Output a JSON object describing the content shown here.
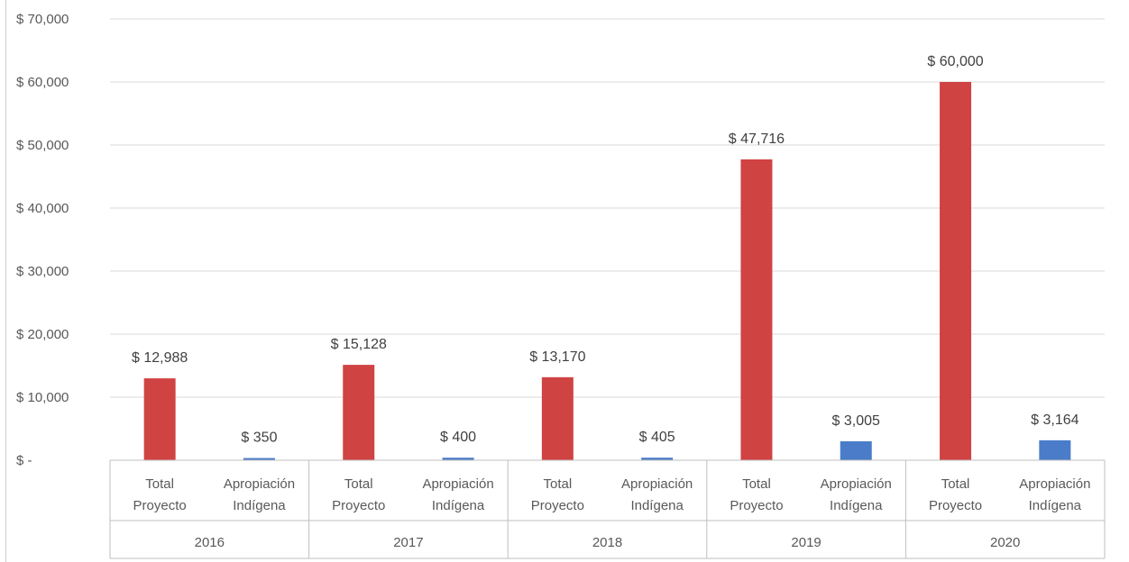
{
  "chart_data": {
    "type": "bar",
    "title": "",
    "xlabel": "",
    "ylabel": "",
    "ylim": [
      0,
      70000
    ],
    "y_ticks": [
      0,
      10000,
      20000,
      30000,
      40000,
      50000,
      60000,
      70000
    ],
    "y_tick_labels": [
      "$ -",
      "$ 10,000",
      "$ 20,000",
      "$ 30,000",
      "$ 40,000",
      "$ 50,000",
      "$ 60,000",
      "$ 70,000"
    ],
    "grid": true,
    "legend": "none",
    "groups": [
      "2016",
      "2017",
      "2018",
      "2019",
      "2020"
    ],
    "subcategories": [
      {
        "line1": "Total",
        "line2": "Proyecto"
      },
      {
        "line1": "Apropiación",
        "line2": "Indígena"
      }
    ],
    "bars": [
      {
        "group": "2016",
        "sub": 0,
        "value": 12988,
        "label": "$ 12,988",
        "color": "#d04343"
      },
      {
        "group": "2016",
        "sub": 1,
        "value": 350,
        "label": "$ 350",
        "color": "#4a7cc9"
      },
      {
        "group": "2017",
        "sub": 0,
        "value": 15128,
        "label": "$ 15,128",
        "color": "#d04343"
      },
      {
        "group": "2017",
        "sub": 1,
        "value": 400,
        "label": "$ 400",
        "color": "#4a7cc9"
      },
      {
        "group": "2018",
        "sub": 0,
        "value": 13170,
        "label": "$ 13,170",
        "color": "#d04343"
      },
      {
        "group": "2018",
        "sub": 1,
        "value": 405,
        "label": "$ 405",
        "color": "#4a7cc9"
      },
      {
        "group": "2019",
        "sub": 0,
        "value": 47716,
        "label": "$ 47,716",
        "color": "#d04343"
      },
      {
        "group": "2019",
        "sub": 1,
        "value": 3005,
        "label": "$ 3,005",
        "color": "#4a7cc9"
      },
      {
        "group": "2020",
        "sub": 0,
        "value": 60000,
        "label": "$ 60,000",
        "color": "#d04343"
      },
      {
        "group": "2020",
        "sub": 1,
        "value": 3164,
        "label": "$ 3,164",
        "color": "#4a7cc9"
      }
    ]
  }
}
